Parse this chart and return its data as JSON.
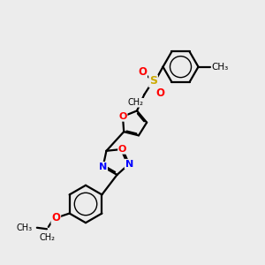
{
  "bg_color": "#ececec",
  "bond_color": "#000000",
  "bond_width": 1.6,
  "atom_colors": {
    "O": "#ff0000",
    "N": "#0000ff",
    "S": "#ccaa00",
    "C": "#000000"
  },
  "figsize": [
    3.0,
    3.0
  ],
  "dpi": 100,
  "xlim": [
    0,
    10
  ],
  "ylim": [
    0,
    10
  ]
}
